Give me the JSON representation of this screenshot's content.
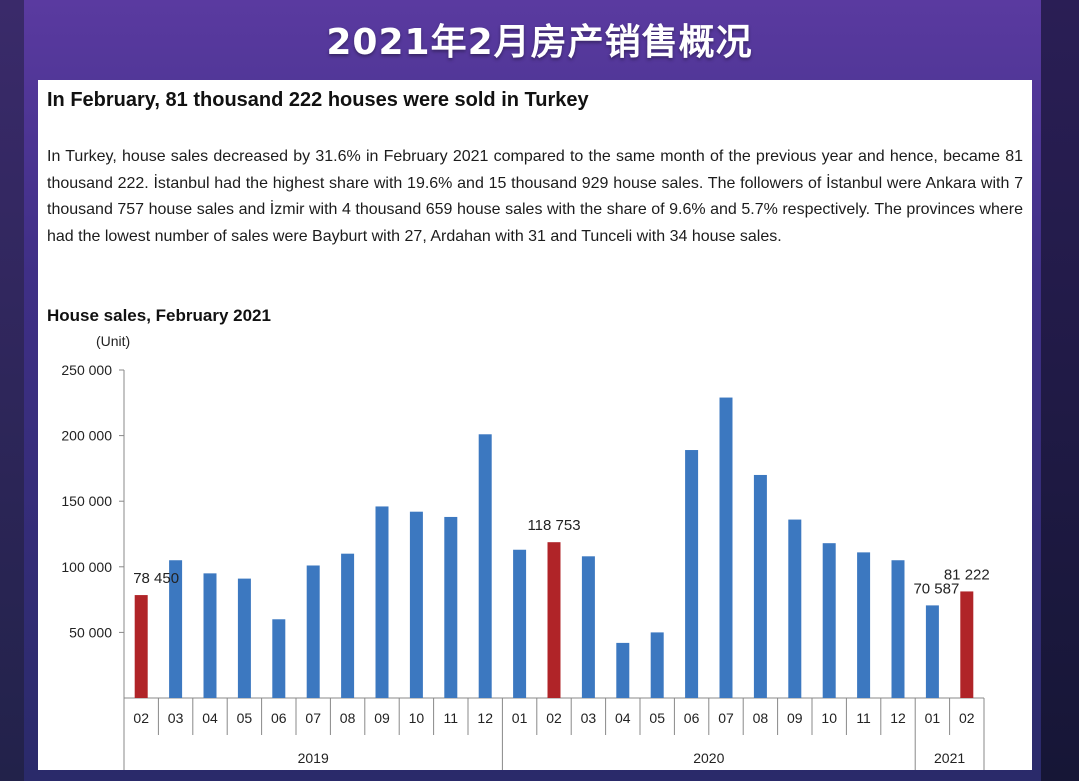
{
  "banner": {
    "title": "2021年2月房产销售概况"
  },
  "article": {
    "headline": "In February, 81 thousand 222 houses were sold in Turkey",
    "body": "In Turkey, house sales decreased by 31.6% in February 2021 compared to the same month of the previous year and hence, became 81 thousand 222. İstanbul had the highest share with 19.6% and 15 thousand 929 house sales. The followers of İstanbul were Ankara with 7 thousand 757 house sales and İzmir with 4 thousand 659 house sales with the share of 9.6% and 5.7% respectively. The provinces where had the lowest number of sales were Bayburt with 27, Ardahan with 31 and Tunceli with 34 house sales."
  },
  "colors": {
    "normal": "#3c78c0",
    "highlight": "#b02428"
  },
  "chart_data": {
    "type": "bar",
    "title": "House sales, February 2021",
    "ylabel": "(Unit)",
    "ylim": [
      0,
      250000
    ],
    "yticks": [
      50000,
      100000,
      150000,
      200000,
      250000
    ],
    "ytick_labels": [
      "50 000",
      "100 000",
      "150 000",
      "200 000",
      "250 000"
    ],
    "categories": [
      "02",
      "03",
      "04",
      "05",
      "06",
      "07",
      "08",
      "09",
      "10",
      "11",
      "12",
      "01",
      "02",
      "03",
      "04",
      "05",
      "06",
      "07",
      "08",
      "09",
      "10",
      "11",
      "12",
      "01",
      "02"
    ],
    "year_groups": [
      {
        "label": "2019",
        "count": 11
      },
      {
        "label": "2020",
        "count": 12
      },
      {
        "label": "2021",
        "count": 2
      }
    ],
    "values": [
      78450,
      105000,
      95000,
      91000,
      60000,
      101000,
      110000,
      146000,
      142000,
      138000,
      201000,
      113000,
      118753,
      108000,
      42000,
      50000,
      189000,
      229000,
      170000,
      136000,
      118000,
      111000,
      105000,
      70587,
      81222
    ],
    "highlighted": [
      0,
      12,
      24
    ],
    "data_labels": [
      {
        "index": 0,
        "text": "78 450"
      },
      {
        "index": 12,
        "text": "118 753"
      },
      {
        "index": 23,
        "text": "70 587"
      },
      {
        "index": 24,
        "text": "81 222"
      }
    ]
  }
}
